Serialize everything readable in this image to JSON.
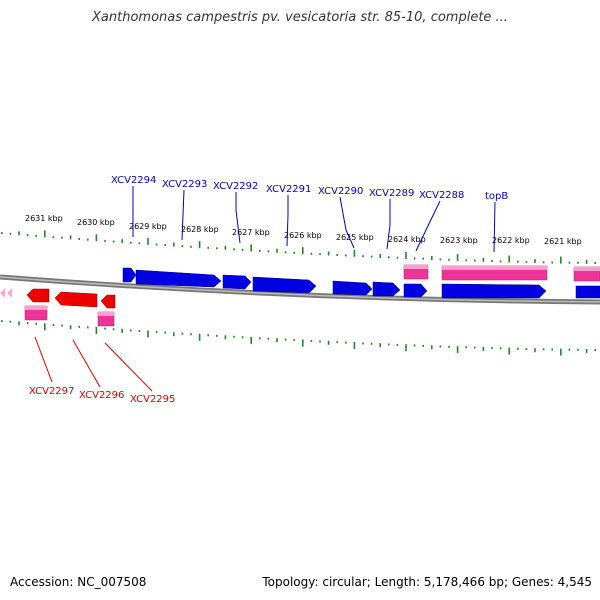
{
  "title": "Xanthomonas campestris pv. vesicatoria str. 85-10, complete ...",
  "footer": {
    "accession": "Accession: NC_007508",
    "summary": "Topology: circular; Length: 5,178,466 bp; Genes: 4,545"
  },
  "colors": {
    "forward_gene": "#0000e0",
    "reverse_gene": "#ee0000",
    "pink_feature": "#ee3399",
    "backbone": "#777777",
    "ticks": "#228822",
    "forward_label": "#0000cc",
    "reverse_label": "#dd0000"
  },
  "scale_labels": [
    "2631 kbp",
    "2630 kbp",
    "2629 kbp",
    "2628 kbp",
    "2627 kbp",
    "2626 kbp",
    "2625 kbp",
    "2624 kbp",
    "2623 kbp",
    "2622 kbp",
    "2621 kbp"
  ],
  "forward_gene_labels": [
    "XCV2294",
    "XCV2293",
    "XCV2292",
    "XCV2291",
    "XCV2290",
    "XCV2289",
    "XCV2288",
    "topB"
  ],
  "reverse_gene_labels": [
    "XCV2297",
    "XCV2296",
    "XCV2295"
  ]
}
